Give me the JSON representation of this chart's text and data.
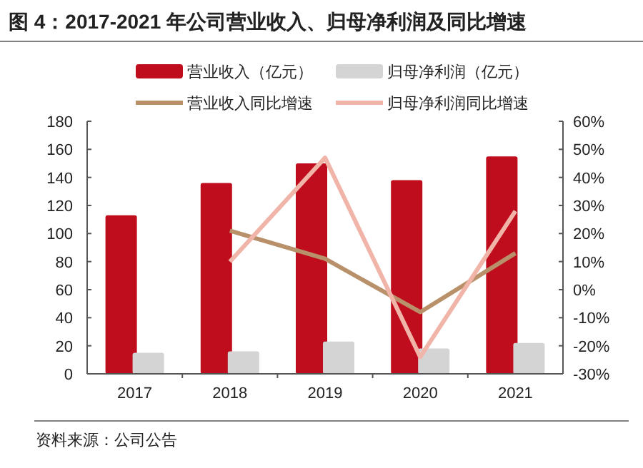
{
  "chart_data": {
    "type": "bar",
    "title": "图 4：2017-2021 年公司营业收入、归母净利润及同比增速",
    "categories": [
      "2017",
      "2018",
      "2019",
      "2020",
      "2021"
    ],
    "series": [
      {
        "name": "营业收入（亿元）",
        "color": "#c00d1e",
        "values": [
          113,
          136,
          150,
          138,
          155
        ]
      },
      {
        "name": "归母净利润（亿元）",
        "color": "#d4d4d4",
        "values": [
          15,
          16,
          23,
          18,
          22
        ]
      },
      {
        "name": "营业收入同比增速",
        "type": "line",
        "axis": "y2",
        "color": "#b8906a",
        "values": [
          null,
          21,
          11,
          -8,
          13
        ]
      },
      {
        "name": "归母净利润同比增速",
        "type": "line",
        "axis": "y2",
        "color": "#f0b4a8",
        "values": [
          null,
          10,
          47,
          -24,
          28
        ]
      }
    ],
    "ylim": [
      0,
      180
    ],
    "yticks": [
      0,
      20,
      40,
      60,
      80,
      100,
      120,
      140,
      160,
      180
    ],
    "y2lim": [
      -30,
      60
    ],
    "y2ticks": [
      {
        "value": -30,
        "label": "-30%"
      },
      {
        "value": -20,
        "label": "-20%"
      },
      {
        "value": -10,
        "label": "-10%"
      },
      {
        "value": 0,
        "label": "0%"
      },
      {
        "value": 10,
        "label": "10%"
      },
      {
        "value": 20,
        "label": "20%"
      },
      {
        "value": 30,
        "label": "30%"
      },
      {
        "value": 40,
        "label": "40%"
      },
      {
        "value": 50,
        "label": "50%"
      },
      {
        "value": 60,
        "label": "60%"
      }
    ],
    "legend": "top",
    "annotations": [
      "资料来源：公司公告"
    ]
  }
}
